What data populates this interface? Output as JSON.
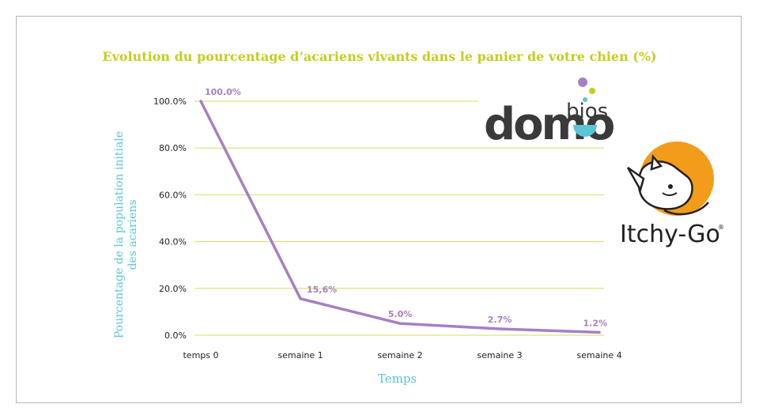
{
  "chart_data": {
    "type": "line",
    "title": "Evolution du pourcentage d’acariens vivants dans le panier de votre chien (%)",
    "xlabel": "Temps",
    "ylabel": "Pourcentage de la population initiale des acariens",
    "ylabel_lines": [
      "Pourcentage de la population initiale",
      "des acariens"
    ],
    "categories": [
      "temps 0",
      "semaine 1",
      "semaine 2",
      "semaine 3",
      "semaine 4"
    ],
    "values": [
      100.0,
      15.6,
      5.0,
      2.7,
      1.2
    ],
    "data_labels": [
      "100.0%",
      "15,6%",
      "5.0%",
      "2.7%",
      "1.2%"
    ],
    "yticks": [
      0,
      20,
      40,
      60,
      80,
      100
    ],
    "ytick_labels": [
      "0.0%",
      "20.0%",
      "40.0%",
      "60.0%",
      "80.0%",
      "100.0%"
    ],
    "ylim": [
      0,
      100
    ],
    "grid": true,
    "colors": {
      "line": "#a77fc3",
      "grid": "#d6de5e",
      "title": "#c3cf1f",
      "axis_title": "#5bc5d8"
    }
  },
  "logos": {
    "domobios": {
      "main": "domo",
      "super": "bios"
    },
    "itchygo": {
      "name": "Itchy-Go",
      "mark": "®"
    }
  }
}
